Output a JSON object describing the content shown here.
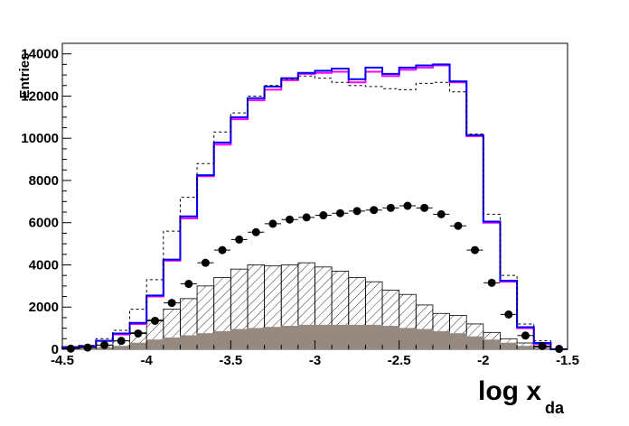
{
  "chart_data": {
    "type": "histogram",
    "xlabel": "log x",
    "xlabel_subscript": "da",
    "ylabel": "Entries",
    "xlim": [
      -4.5,
      -1.5
    ],
    "ylim": [
      0,
      14500
    ],
    "x_ticks": [
      -4.5,
      -4,
      -3.5,
      -3,
      -2.5,
      -2,
      -1.5
    ],
    "x_tick_labels": [
      "-4.5",
      "-4",
      "-3.5",
      "-3",
      "-2.5",
      "-2",
      "-1.5"
    ],
    "y_ticks": [
      0,
      2000,
      4000,
      6000,
      8000,
      10000,
      12000,
      14000
    ],
    "y_tick_labels": [
      "0",
      "2000",
      "4000",
      "6000",
      "8000",
      "10000",
      "12000",
      "14000"
    ],
    "bin_edges": [
      -4.5,
      -4.4,
      -4.3,
      -4.2,
      -4.1,
      -4.0,
      -3.9,
      -3.8,
      -3.7,
      -3.6,
      -3.5,
      -3.4,
      -3.3,
      -3.2,
      -3.1,
      -3.0,
      -2.9,
      -2.8,
      -2.7,
      -2.6,
      -2.5,
      -2.4,
      -2.3,
      -2.2,
      -2.1,
      -2.0,
      -1.9,
      -1.8,
      -1.7,
      -1.6,
      -1.5
    ],
    "series": [
      {
        "role": "step",
        "color": "#ff00ff",
        "values": [
          100,
          150,
          400,
          700,
          1200,
          2500,
          4200,
          6200,
          8200,
          9700,
          10900,
          11800,
          12300,
          12750,
          13050,
          13100,
          13150,
          12650,
          13150,
          12950,
          13250,
          13350,
          13450,
          12650,
          10100,
          6000,
          3200,
          1000,
          250,
          0
        ]
      },
      {
        "role": "step",
        "color": "#0000ff",
        "values": [
          100,
          150,
          400,
          750,
          1250,
          2550,
          4250,
          6300,
          8250,
          9800,
          11000,
          11900,
          12450,
          12850,
          13100,
          13200,
          13300,
          12800,
          13350,
          13050,
          13350,
          13450,
          13500,
          12700,
          10150,
          6050,
          3250,
          1050,
          300,
          0
        ]
      },
      {
        "role": "dashed-step",
        "color": "#000000",
        "values": [
          120,
          180,
          500,
          900,
          1900,
          3300,
          5600,
          7200,
          8800,
          10300,
          11200,
          12000,
          12500,
          12800,
          12950,
          12850,
          12650,
          12500,
          12450,
          12350,
          12300,
          12600,
          12650,
          12200,
          10200,
          6400,
          3500,
          1200,
          400,
          0
        ]
      },
      {
        "role": "hatched-fill",
        "color": "#000000",
        "values": [
          50,
          80,
          200,
          400,
          800,
          1400,
          1900,
          2400,
          3000,
          3400,
          3800,
          4000,
          3950,
          4000,
          4100,
          3900,
          3700,
          3400,
          3200,
          2800,
          2600,
          2100,
          1700,
          1600,
          1200,
          800,
          500,
          300,
          100,
          0
        ]
      },
      {
        "role": "grey-fill",
        "color": "#968a80",
        "values": [
          20,
          40,
          80,
          150,
          300,
          450,
          550,
          650,
          750,
          850,
          950,
          1000,
          1050,
          1100,
          1150,
          1150,
          1150,
          1150,
          1150,
          1100,
          1000,
          950,
          850,
          750,
          600,
          450,
          300,
          150,
          50,
          0
        ]
      },
      {
        "role": "data-points",
        "color": "#000000",
        "x": [
          -4.45,
          -4.35,
          -4.25,
          -4.15,
          -4.05,
          -3.95,
          -3.85,
          -3.75,
          -3.65,
          -3.55,
          -3.45,
          -3.35,
          -3.25,
          -3.15,
          -3.05,
          -2.95,
          -2.85,
          -2.75,
          -2.65,
          -2.55,
          -2.45,
          -2.35,
          -2.25,
          -2.15,
          -2.05,
          -1.95,
          -1.85,
          -1.75,
          -1.65,
          -1.55
        ],
        "y": [
          30,
          80,
          200,
          400,
          750,
          1350,
          2200,
          3100,
          4100,
          4700,
          5200,
          5550,
          5950,
          6150,
          6250,
          6350,
          6450,
          6550,
          6600,
          6700,
          6800,
          6700,
          6400,
          5850,
          4700,
          3150,
          1650,
          650,
          150,
          20
        ]
      }
    ]
  }
}
